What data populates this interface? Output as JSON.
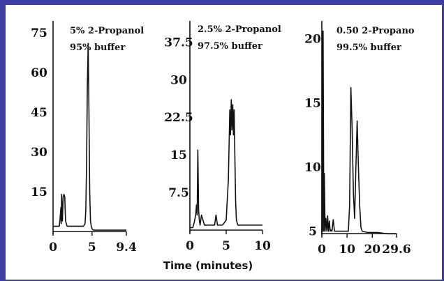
{
  "colors": {
    "frame": "#3f3f9f",
    "ink": "#111111"
  },
  "xlabel": "Time (minutes)",
  "chart_data": [
    {
      "type": "line",
      "annotation": [
        "5%  2-Propanol",
        "95%  buffer"
      ],
      "xlim": [
        0,
        9.4
      ],
      "ylim": [
        0,
        80
      ],
      "x_ticks": [
        0,
        5,
        9.4
      ],
      "x_tick_labels": [
        "0",
        "5",
        "9.4"
      ],
      "y_ticks": [
        15,
        30,
        45,
        60,
        75
      ],
      "y_tick_labels": [
        "15",
        "30",
        "45",
        "60",
        "75"
      ],
      "x": [
        0,
        0.8,
        0.9,
        1.0,
        1.05,
        1.1,
        1.2,
        1.3,
        1.4,
        1.5,
        1.6,
        1.7,
        1.8,
        2.0,
        2.5,
        3.0,
        3.5,
        3.9,
        4.1,
        4.2,
        4.3,
        4.4,
        4.5,
        4.6,
        4.7,
        4.8,
        4.9,
        5.0,
        5.2,
        6.0,
        7.0,
        8.0,
        9.4
      ],
      "y": [
        2,
        2,
        5,
        9,
        3,
        14,
        4,
        13,
        14,
        13,
        4,
        3,
        2,
        2,
        2,
        2,
        2,
        2,
        3,
        8,
        25,
        55,
        71,
        45,
        15,
        4,
        2,
        1,
        0.5,
        0.5,
        0.5,
        0.5,
        0.5
      ]
    },
    {
      "type": "line",
      "annotation": [
        "2.5%  2-Propanol",
        "97.5%  buffer"
      ],
      "xlim": [
        0,
        10
      ],
      "ylim": [
        0,
        42
      ],
      "x_ticks": [
        0,
        5,
        10
      ],
      "x_tick_labels": [
        "0",
        "5",
        "10"
      ],
      "y_ticks": [
        7.5,
        15,
        22.5,
        30,
        37.5
      ],
      "y_tick_labels": [
        "7.5",
        "15",
        "22.5",
        "30",
        "37.5"
      ],
      "x": [
        0,
        0.4,
        0.6,
        0.8,
        0.9,
        1.0,
        1.1,
        1.2,
        1.3,
        1.4,
        1.6,
        2.0,
        2.5,
        3.0,
        3.4,
        3.6,
        3.8,
        4.5,
        5.0,
        5.3,
        5.5,
        5.6,
        5.7,
        5.8,
        5.9,
        6.0,
        6.1,
        6.2,
        6.3,
        6.4,
        6.6,
        7.0,
        8.0,
        10.0
      ],
      "y": [
        0.5,
        0.5,
        1.5,
        3,
        5,
        3,
        16,
        4,
        2,
        1,
        3,
        1,
        1,
        1,
        1,
        3,
        1,
        1,
        2,
        10,
        24,
        19,
        26,
        20,
        25,
        19,
        24,
        14,
        6,
        2,
        1,
        1,
        1,
        1
      ]
    },
    {
      "type": "line",
      "annotation": [
        "0.50  2-Propano",
        "99.5%  buffer"
      ],
      "xlim": [
        0,
        29.6
      ],
      "ylim": [
        4,
        21.5
      ],
      "x_ticks": [
        0,
        10,
        20,
        29.6
      ],
      "x_tick_labels": [
        "0",
        "10",
        "20",
        "29.6"
      ],
      "y_ticks": [
        5,
        10,
        15,
        20
      ],
      "y_tick_labels": [
        "5",
        "10",
        "15",
        "20"
      ],
      "x": [
        0,
        0.1,
        0.3,
        0.5,
        0.8,
        1.0,
        1.3,
        1.6,
        2.0,
        2.3,
        2.6,
        3.0,
        3.3,
        3.6,
        4.0,
        4.5,
        5.0,
        7.0,
        9.0,
        10.0,
        10.5,
        11.0,
        11.5,
        12.0,
        12.5,
        13.0,
        13.5,
        14.0,
        14.5,
        15.0,
        15.5,
        16.0,
        18.0,
        22.0,
        26.0,
        29.6
      ],
      "y": [
        4.8,
        20.6,
        5,
        20.6,
        5,
        9.5,
        5,
        6,
        5,
        6.2,
        5,
        5.8,
        5,
        5.1,
        5,
        5.9,
        5,
        5,
        5,
        5,
        5,
        7,
        16.2,
        13,
        8,
        6,
        10,
        13.6,
        10,
        7,
        5.3,
        5,
        4.9,
        4.9,
        4.8,
        4.8
      ]
    }
  ]
}
